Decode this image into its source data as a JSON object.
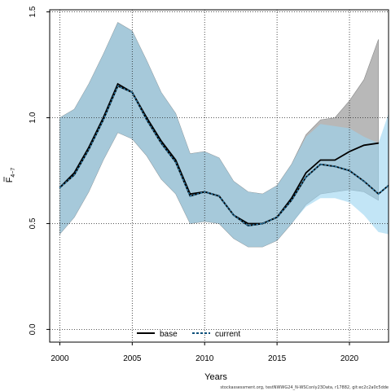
{
  "chart_data": {
    "type": "line",
    "xlabel": "Years",
    "ylabel_main": "F",
    "ylabel_sub": "4−7",
    "xlim": [
      1999.3,
      2022.7
    ],
    "ylim": [
      -0.06,
      1.51
    ],
    "x_ticks": [
      2000,
      2005,
      2010,
      2015,
      2020
    ],
    "y_ticks": [
      0.0,
      0.5,
      1.0,
      1.5
    ],
    "y_tick_labels": [
      "0.0",
      "0.5",
      "1.0",
      "1.5"
    ],
    "grid": true,
    "legend_position": "bottom",
    "x": [
      2000,
      2001,
      2002,
      2003,
      2004,
      2005,
      2006,
      2007,
      2008,
      2009,
      2010,
      2011,
      2012,
      2013,
      2014,
      2015,
      2016,
      2017,
      2018,
      2019,
      2020,
      2021,
      2022
    ],
    "series": [
      {
        "name": "base",
        "color": "#000000",
        "band_color": "#a0a0a0",
        "x": [
          2000,
          2001,
          2002,
          2003,
          2004,
          2005,
          2006,
          2007,
          2008,
          2009,
          2010,
          2011,
          2012,
          2013,
          2014,
          2015,
          2016,
          2017,
          2018,
          2019,
          2020,
          2021,
          2022
        ],
        "values": [
          0.67,
          0.74,
          0.86,
          1.0,
          1.16,
          1.12,
          1.0,
          0.89,
          0.8,
          0.64,
          0.65,
          0.63,
          0.54,
          0.5,
          0.5,
          0.53,
          0.62,
          0.74,
          0.8,
          0.8,
          0.84,
          0.87,
          0.88
        ],
        "lower": [
          0.45,
          0.53,
          0.65,
          0.8,
          0.93,
          0.9,
          0.82,
          0.71,
          0.64,
          0.5,
          0.51,
          0.5,
          0.43,
          0.39,
          0.39,
          0.42,
          0.5,
          0.59,
          0.64,
          0.65,
          0.66,
          0.65,
          0.61
        ],
        "upper": [
          1.0,
          1.04,
          1.16,
          1.3,
          1.45,
          1.41,
          1.27,
          1.12,
          1.02,
          0.83,
          0.84,
          0.81,
          0.7,
          0.65,
          0.64,
          0.68,
          0.78,
          0.92,
          0.99,
          1.0,
          1.08,
          1.18,
          1.37
        ]
      },
      {
        "name": "current",
        "color": "#0a4f7a",
        "band_color": "#9ad4f0",
        "x": [
          2000,
          2001,
          2002,
          2003,
          2004,
          2005,
          2006,
          2007,
          2008,
          2009,
          2010,
          2011,
          2012,
          2013,
          2014,
          2015,
          2016,
          2017,
          2018,
          2019,
          2020,
          2021,
          2022,
          2022.7
        ],
        "values": [
          0.67,
          0.73,
          0.85,
          0.99,
          1.15,
          1.12,
          0.99,
          0.88,
          0.79,
          0.63,
          0.65,
          0.63,
          0.54,
          0.49,
          0.5,
          0.53,
          0.61,
          0.72,
          0.78,
          0.77,
          0.75,
          0.7,
          0.64,
          0.68
        ],
        "lower": [
          0.45,
          0.53,
          0.65,
          0.8,
          0.93,
          0.9,
          0.82,
          0.71,
          0.64,
          0.5,
          0.51,
          0.5,
          0.43,
          0.39,
          0.39,
          0.42,
          0.5,
          0.58,
          0.62,
          0.62,
          0.6,
          0.54,
          0.46,
          0.45
        ],
        "upper": [
          1.0,
          1.04,
          1.16,
          1.3,
          1.45,
          1.41,
          1.27,
          1.12,
          1.02,
          0.83,
          0.84,
          0.81,
          0.7,
          0.65,
          0.64,
          0.68,
          0.78,
          0.91,
          0.97,
          0.96,
          0.95,
          0.91,
          0.88,
          1.02
        ]
      }
    ]
  },
  "footnote": "stockassessment.org, testNWWG24_N-WSConly23Data, r17882, git:ec2c2a0c5dde"
}
